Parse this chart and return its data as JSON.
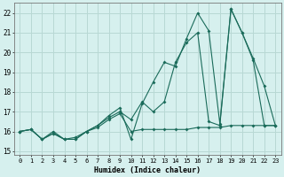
{
  "xlabel": "Humidex (Indice chaleur)",
  "bg_color": "#d6f0ee",
  "grid_color": "#b8d8d4",
  "line_color": "#1a6b5a",
  "xlim": [
    -0.5,
    23.5
  ],
  "ylim": [
    14.8,
    22.5
  ],
  "xticks": [
    0,
    1,
    2,
    3,
    4,
    5,
    6,
    7,
    8,
    9,
    10,
    11,
    12,
    13,
    14,
    15,
    16,
    17,
    18,
    19,
    20,
    21,
    22,
    23
  ],
  "yticks": [
    15,
    16,
    17,
    18,
    19,
    20,
    21,
    22
  ],
  "line1_x": [
    0,
    1,
    2,
    3,
    4,
    5,
    6,
    7,
    8,
    9,
    10,
    11,
    12,
    13,
    14,
    15,
    16,
    17,
    18,
    19,
    20,
    21,
    22,
    23
  ],
  "line1_y": [
    16.0,
    16.1,
    15.6,
    16.0,
    15.6,
    15.7,
    16.0,
    16.2,
    16.6,
    16.9,
    16.0,
    16.1,
    16.1,
    16.1,
    16.1,
    16.1,
    16.2,
    16.2,
    16.2,
    16.3,
    16.3,
    16.3,
    16.3,
    16.3
  ],
  "line2_x": [
    0,
    1,
    2,
    3,
    4,
    5,
    6,
    7,
    8,
    9,
    10,
    11,
    12,
    13,
    14,
    15,
    16,
    17,
    18,
    19,
    20,
    21,
    22,
    23
  ],
  "line2_y": [
    16.0,
    16.1,
    15.6,
    15.9,
    15.6,
    15.6,
    16.0,
    16.3,
    16.7,
    17.0,
    16.6,
    17.5,
    17.0,
    17.5,
    19.5,
    20.5,
    21.0,
    16.5,
    16.3,
    22.2,
    21.0,
    19.6,
    16.3,
    16.3
  ],
  "line3_x": [
    0,
    1,
    2,
    3,
    4,
    5,
    6,
    7,
    8,
    9,
    10,
    11,
    12,
    13,
    14,
    15,
    16,
    17,
    18,
    19,
    20,
    21,
    22,
    23
  ],
  "line3_y": [
    16.0,
    16.1,
    15.6,
    15.9,
    15.6,
    15.6,
    16.0,
    16.3,
    16.8,
    17.2,
    15.6,
    17.4,
    18.5,
    19.5,
    19.3,
    20.7,
    22.0,
    21.1,
    16.4,
    22.2,
    21.0,
    19.7,
    18.3,
    16.3
  ]
}
